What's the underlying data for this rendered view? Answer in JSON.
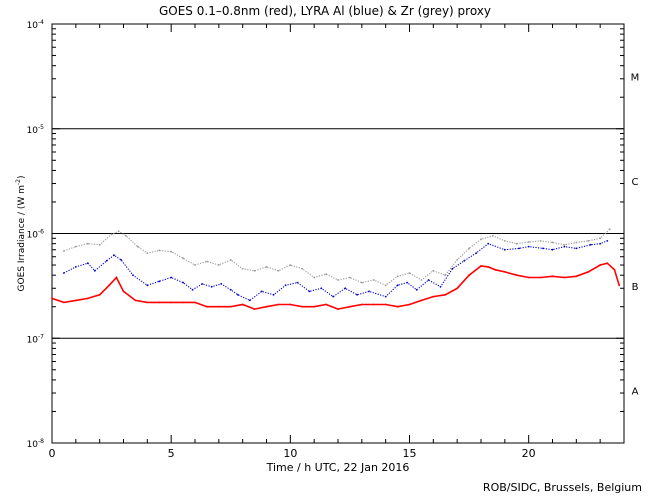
{
  "chart_data": {
    "type": "scatter",
    "title": "GOES 0.1–0.8nm (red), LYRA Al (blue) & Zr (grey) proxy",
    "xlabel": "Time / h UTC, 22 Jan 2016",
    "ylabel": "GOES Irradiance / (W m",
    "ylabel_sup": "-2",
    "ylabel_close": ")",
    "xlim": [
      0,
      24
    ],
    "ylim": [
      1e-08,
      0.0001
    ],
    "y_scale": "log",
    "x_ticks": [
      0,
      5,
      10,
      15,
      20
    ],
    "x_minor_step": 1,
    "y_ticks": [
      {
        "value": 1e-08,
        "base": "10",
        "exp": "-8"
      },
      {
        "value": 1e-07,
        "base": "10",
        "exp": "-7"
      },
      {
        "value": 1e-06,
        "base": "10",
        "exp": "-6"
      },
      {
        "value": 1e-05,
        "base": "10",
        "exp": "-5"
      },
      {
        "value": 0.0001,
        "base": "10",
        "exp": "-4"
      }
    ],
    "flare_classes": [
      {
        "label": "A",
        "y": 3.16e-08
      },
      {
        "label": "B",
        "y": 3.16e-07
      },
      {
        "label": "C",
        "y": 3.16e-06
      },
      {
        "label": "M",
        "y": 3.16e-05
      }
    ],
    "class_lines": [
      1e-07,
      1e-06,
      1e-05
    ],
    "series": [
      {
        "name": "GOES 0.1–0.8nm",
        "color": "#ff0000",
        "x": [
          0,
          0.5,
          1.0,
          1.5,
          2.0,
          2.4,
          2.7,
          3.0,
          3.5,
          4.0,
          4.5,
          5.0,
          5.5,
          6.0,
          6.5,
          7.0,
          7.5,
          8.0,
          8.5,
          9.0,
          9.5,
          10.0,
          10.5,
          11.0,
          11.5,
          12.0,
          12.5,
          13.0,
          13.5,
          14.0,
          14.5,
          15.0,
          15.5,
          16.0,
          16.5,
          17.0,
          17.5,
          18.0,
          18.3,
          18.6,
          19.0,
          19.5,
          20.0,
          20.5,
          21.0,
          21.5,
          22.0,
          22.5,
          23.0,
          23.3,
          23.6,
          23.8
        ],
        "y": [
          2.4e-07,
          2.2e-07,
          2.3e-07,
          2.4e-07,
          2.6e-07,
          3.2e-07,
          3.8e-07,
          2.8e-07,
          2.3e-07,
          2.2e-07,
          2.2e-07,
          2.2e-07,
          2.2e-07,
          2.2e-07,
          2e-07,
          2e-07,
          2e-07,
          2.1e-07,
          1.9e-07,
          2e-07,
          2.1e-07,
          2.1e-07,
          2e-07,
          2e-07,
          2.1e-07,
          1.9e-07,
          2e-07,
          2.1e-07,
          2.1e-07,
          2.1e-07,
          2e-07,
          2.1e-07,
          2.3e-07,
          2.5e-07,
          2.6e-07,
          3e-07,
          4e-07,
          4.9e-07,
          4.8e-07,
          4.5e-07,
          4.3e-07,
          4e-07,
          3.8e-07,
          3.8e-07,
          3.9e-07,
          3.8e-07,
          3.9e-07,
          4.3e-07,
          5e-07,
          5.2e-07,
          4.5e-07,
          3.2e-07
        ]
      },
      {
        "name": "LYRA Al",
        "color": "#0000cc",
        "x": [
          0.5,
          1.0,
          1.5,
          1.8,
          2.3,
          2.6,
          2.9,
          3.4,
          4.0,
          4.5,
          5.0,
          5.5,
          5.9,
          6.3,
          6.7,
          7.1,
          7.5,
          7.8,
          8.3,
          8.8,
          9.3,
          9.8,
          10.3,
          10.8,
          11.3,
          11.8,
          12.3,
          12.8,
          13.3,
          14.0,
          14.5,
          14.9,
          15.3,
          15.8,
          16.3,
          16.8,
          17.3,
          17.8,
          18.3,
          19.0,
          19.6,
          20.0,
          20.6,
          21.0,
          21.5,
          22.0,
          22.6,
          23.0,
          23.3
        ],
        "y": [
          4.2e-07,
          4.8e-07,
          5.2e-07,
          4.4e-07,
          5.5e-07,
          6.2e-07,
          5.6e-07,
          4e-07,
          3.2e-07,
          3.5e-07,
          3.8e-07,
          3.4e-07,
          2.9e-07,
          3.3e-07,
          3.1e-07,
          3.3e-07,
          2.9e-07,
          2.6e-07,
          2.3e-07,
          2.8e-07,
          2.6e-07,
          3.2e-07,
          3.4e-07,
          2.8e-07,
          3e-07,
          2.5e-07,
          3e-07,
          2.6e-07,
          2.8e-07,
          2.5e-07,
          3.2e-07,
          3.4e-07,
          2.9e-07,
          3.6e-07,
          3.1e-07,
          4.6e-07,
          5.5e-07,
          6.5e-07,
          8e-07,
          7e-07,
          7.2e-07,
          7.5e-07,
          7.2e-07,
          7e-07,
          7.5e-07,
          7.2e-07,
          7.8e-07,
          8e-07,
          8.5e-07
        ]
      },
      {
        "name": "Zr",
        "color": "#999999",
        "x": [
          0.5,
          1.0,
          1.5,
          2.0,
          2.5,
          2.8,
          3.1,
          3.6,
          4.0,
          4.5,
          5.0,
          5.5,
          6.0,
          6.5,
          7.0,
          7.5,
          8.0,
          8.5,
          9.0,
          9.5,
          10.0,
          10.5,
          11.0,
          11.5,
          12.0,
          12.5,
          13.0,
          13.5,
          14.0,
          14.5,
          15.0,
          15.5,
          16.0,
          16.5,
          17.0,
          17.5,
          18.0,
          18.5,
          19.0,
          19.5,
          20.0,
          20.5,
          21.0,
          21.5,
          22.0,
          22.5,
          23.0,
          23.4
        ],
        "y": [
          6.8e-07,
          7.5e-07,
          8e-07,
          7.8e-07,
          9.8e-07,
          1.05e-06,
          9.5e-07,
          7.5e-07,
          6.5e-07,
          6.9e-07,
          6.7e-07,
          5.8e-07,
          5e-07,
          5.4e-07,
          5e-07,
          5.6e-07,
          4.6e-07,
          4.4e-07,
          4.8e-07,
          4.4e-07,
          5e-07,
          4.6e-07,
          3.8e-07,
          4.1e-07,
          3.6e-07,
          3.8e-07,
          3.4e-07,
          3.6e-07,
          3.2e-07,
          3.9e-07,
          4.2e-07,
          3.6e-07,
          4.4e-07,
          4e-07,
          5.6e-07,
          7.2e-07,
          8.8e-07,
          9.5e-07,
          8.5e-07,
          8e-07,
          8.3e-07,
          8.5e-07,
          8.2e-07,
          7.8e-07,
          8.2e-07,
          8.5e-07,
          9e-07,
          1.1e-06
        ]
      }
    ]
  },
  "credit": "ROB/SIDC, Brussels, Belgium"
}
